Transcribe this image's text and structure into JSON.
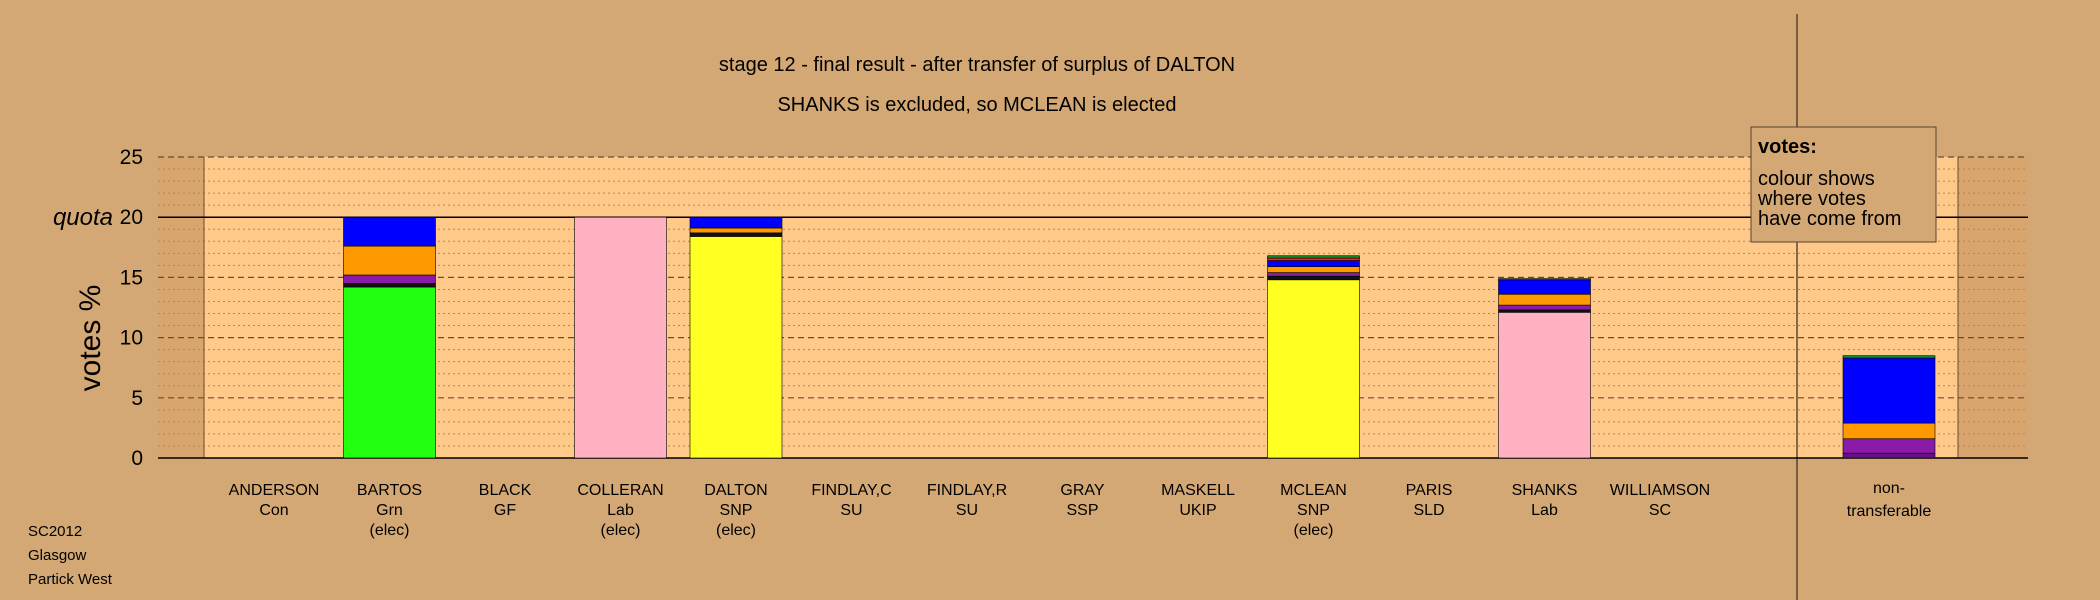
{
  "chart_data": {
    "type": "bar",
    "stacked": true,
    "title": "stage 12 - final result - after transfer of surplus of DALTON",
    "subtitle": "SHANKS is excluded, so MCLEAN is elected",
    "ylabel": "votes %",
    "ylim": [
      0,
      25
    ],
    "yticks": [
      0,
      5,
      10,
      15,
      20,
      25
    ],
    "quota_label": "quota",
    "quota": 20,
    "grid": true,
    "legend": {
      "position": "top-right",
      "title": "votes:",
      "lines": [
        "colour shows",
        "where votes",
        "have come from"
      ]
    },
    "colors": {
      "background": "#d4a874",
      "plot": "#ffc98a",
      "green": "#22ff11",
      "pink": "#ffb0c1",
      "yellow": "#ffff22",
      "blue": "#0000ff",
      "orange": "#ff9900",
      "purple": "#8a1aa8",
      "black": "#111111",
      "red": "#ff2222",
      "darkgreen": "#0a8a2a"
    },
    "candidates": [
      {
        "name": "ANDERSON",
        "party": "Con",
        "status": "",
        "segments": []
      },
      {
        "name": "BARTOS",
        "party": "Grn",
        "status": "(elec)",
        "segments": [
          {
            "color": "#22ff11",
            "value": 14.2
          },
          {
            "color": "#111111",
            "value": 0.3
          },
          {
            "color": "#8a1aa8",
            "value": 0.7
          },
          {
            "color": "#ff9900",
            "value": 2.4
          },
          {
            "color": "#0000ff",
            "value": 2.4
          }
        ]
      },
      {
        "name": "BLACK",
        "party": "GF",
        "status": "",
        "segments": []
      },
      {
        "name": "COLLERAN",
        "party": "Lab",
        "status": "(elec)",
        "segments": [
          {
            "color": "#ffb0c1",
            "value": 20.0
          }
        ]
      },
      {
        "name": "DALTON",
        "party": "SNP",
        "status": "(elec)",
        "segments": [
          {
            "color": "#ffff22",
            "value": 18.4
          },
          {
            "color": "#111111",
            "value": 0.3
          },
          {
            "color": "#ff9900",
            "value": 0.4
          },
          {
            "color": "#0000ff",
            "value": 0.9
          }
        ]
      },
      {
        "name": "FINDLAY,C",
        "party": "SU",
        "status": "",
        "segments": []
      },
      {
        "name": "FINDLAY,R",
        "party": "SU",
        "status": "",
        "segments": []
      },
      {
        "name": "GRAY",
        "party": "SSP",
        "status": "",
        "segments": []
      },
      {
        "name": "MASKELL",
        "party": "UKIP",
        "status": "",
        "segments": []
      },
      {
        "name": "MCLEAN",
        "party": "SNP",
        "status": "(elec)",
        "segments": [
          {
            "color": "#ffff22",
            "value": 14.8
          },
          {
            "color": "#111111",
            "value": 0.3
          },
          {
            "color": "#8a1aa8",
            "value": 0.3
          },
          {
            "color": "#ff9900",
            "value": 0.5
          },
          {
            "color": "#0000ff",
            "value": 0.5
          },
          {
            "color": "#ff2222",
            "value": 0.2
          },
          {
            "color": "#0a8a2a",
            "value": 0.2
          }
        ]
      },
      {
        "name": "PARIS",
        "party": "SLD",
        "status": "",
        "segments": []
      },
      {
        "name": "SHANKS",
        "party": "Lab",
        "status": "",
        "segments": [
          {
            "color": "#ffb0c1",
            "value": 12.1
          },
          {
            "color": "#111111",
            "value": 0.2
          },
          {
            "color": "#8a1aa8",
            "value": 0.4
          },
          {
            "color": "#ff9900",
            "value": 0.9
          },
          {
            "color": "#0000ff",
            "value": 1.2
          },
          {
            "color": "#0a8a2a",
            "value": 0.1
          }
        ]
      },
      {
        "name": "WILLIAMSON",
        "party": "SC",
        "status": "",
        "segments": []
      }
    ],
    "nontransferable": {
      "label_line1": "non-",
      "label_line2": "transferable",
      "segments": [
        {
          "color": "#6a0f88",
          "value": 0.4
        },
        {
          "color": "#8a1aa8",
          "value": 1.2
        },
        {
          "color": "#ff9900",
          "value": 1.3
        },
        {
          "color": "#0000ff",
          "value": 5.4
        },
        {
          "color": "#0a8a2a",
          "value": 0.2
        }
      ]
    },
    "footer": [
      "SC2012",
      "Glasgow",
      "Partick West"
    ]
  }
}
